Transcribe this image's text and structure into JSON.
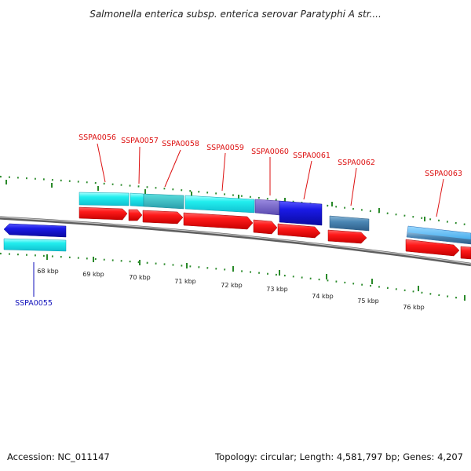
{
  "title": "Salmonella enterica subsp. enterica serovar Paratyphi A str....",
  "footer": {
    "accession": "Accession: NC_011147",
    "summary": "Topology: circular; Length: 4,581,797 bp; Genes: 4,207"
  },
  "colors": {
    "forward_label": "#dd1111",
    "reverse_label": "#1111bb",
    "cds_forward": "#ee1111",
    "cds_reverse": "#1a1ae6",
    "gene_cyan": "#11eeee",
    "gene_steel": "#4a86b4",
    "backbone": "#8a8a8a",
    "tick": "#2a8a2a"
  },
  "kbp_ticks": [
    "68 kbp",
    "69 kbp",
    "70 kbp",
    "71 kbp",
    "72 kbp",
    "73 kbp",
    "74 kbp",
    "75 kbp",
    "76 kbp"
  ],
  "gene_labels": [
    {
      "id": "SSPA0055",
      "strand": "reverse"
    },
    {
      "id": "SSPA0056",
      "strand": "forward"
    },
    {
      "id": "SSPA0057",
      "strand": "forward"
    },
    {
      "id": "SSPA0058",
      "strand": "forward"
    },
    {
      "id": "SSPA0059",
      "strand": "forward"
    },
    {
      "id": "SSPA0060",
      "strand": "forward"
    },
    {
      "id": "SSPA0061",
      "strand": "forward"
    },
    {
      "id": "SSPA0062",
      "strand": "forward"
    },
    {
      "id": "SSPA0063",
      "strand": "forward"
    }
  ]
}
